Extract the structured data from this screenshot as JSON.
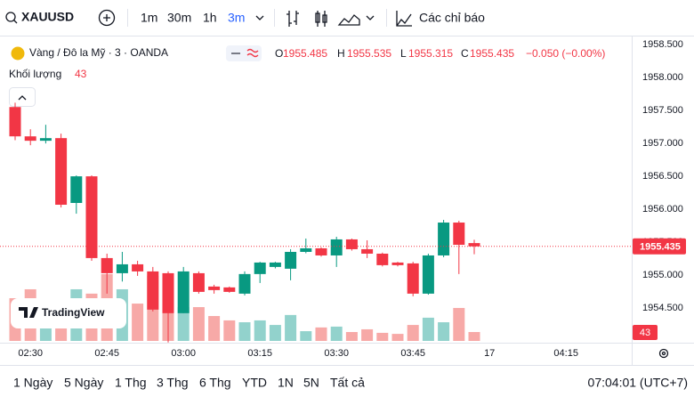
{
  "toolbar": {
    "symbol": "XAUUSD",
    "intervals": [
      "1m",
      "30m",
      "1h",
      "3m"
    ],
    "indicators": "Các chỉ báo"
  },
  "legend": {
    "symbol": "Vàng / Đô la Mỹ · 3 · OANDA",
    "o": "O",
    "h": "H",
    "l": "L",
    "c": "C",
    "change": "−0.050 (−0.00%)",
    "volume_label": "Khối lượng"
  },
  "watermark": "TradingView",
  "bottom_bar": {
    "ranges": [
      "1 Ngày",
      "5 Ngày",
      "1 Thg",
      "3 Thg",
      "6 Thg",
      "YTD",
      "1N",
      "5N",
      "Tất cả"
    ],
    "clock": "07:04:01 (UTC+7)"
  },
  "chart_data": {
    "type": "candlestick",
    "categories": [
      null,
      "02:30",
      null,
      null,
      null,
      null,
      "02:45",
      null,
      null,
      null,
      null,
      "03:00",
      null,
      null,
      null,
      null,
      "03:15",
      null,
      null,
      null,
      null,
      "03:30",
      null,
      null,
      null,
      null,
      "03:45",
      null,
      null,
      null,
      null,
      "17",
      null,
      null,
      null,
      null,
      "04:15"
    ],
    "open": [
      1957.554,
      1957.108,
      1957.041,
      1957.081,
      1956.095,
      1956.5,
      1955.257,
      1955.027,
      1955.162,
      1955.054,
      1955.027,
      1954.419,
      1955.027,
      1954.824,
      1954.811,
      1954.716,
      1955.014,
      1955.122,
      1955.095,
      1955.351,
      1955.405,
      1955.297,
      1955.541,
      1955.392,
      1955.324,
      1955.189,
      1955.176,
      1954.716,
      1955.297,
      1955.797,
      1955.485,
      null,
      null,
      null,
      null,
      null,
      null
    ],
    "high": [
      1957.62,
      1957.216,
      1957.284,
      1957.149,
      1956.514,
      1956.514,
      1955.324,
      1955.351,
      1955.216,
      1955.122,
      1955.054,
      1955.122,
      1955.054,
      1954.851,
      1954.824,
      1955.054,
      1955.2,
      1955.2,
      1955.392,
      1955.554,
      1955.42,
      1955.581,
      1955.554,
      1955.527,
      1955.34,
      1955.2,
      1955.2,
      1955.324,
      1955.838,
      1955.824,
      1955.535,
      null,
      null,
      null,
      null,
      null,
      null
    ],
    "low": [
      1957.05,
      1956.973,
      1957.0,
      1956.027,
      1955.932,
      1955.216,
      1954.716,
      1954.9,
      1954.986,
      1954.446,
      1953.973,
      1954.419,
      1954.716,
      1954.716,
      1954.73,
      1954.689,
      1954.878,
      1955.1,
      1954.919,
      1955.33,
      1955.28,
      1955.122,
      1955.37,
      1955.257,
      1955.13,
      1955.13,
      1954.676,
      1954.7,
      1955.27,
      1955.014,
      1955.315,
      null,
      null,
      null,
      null,
      null,
      null
    ],
    "close": [
      1957.108,
      1957.041,
      1957.081,
      1956.068,
      1956.5,
      1955.257,
      1955.027,
      1955.162,
      1955.054,
      1954.473,
      1954.419,
      1955.054,
      1954.743,
      1954.77,
      1954.743,
      1955.014,
      1955.189,
      1955.189,
      1955.351,
      1955.405,
      1955.297,
      1955.541,
      1955.392,
      1955.324,
      1955.149,
      1955.149,
      1954.716,
      1955.297,
      1955.797,
      1955.459,
      1955.435,
      null,
      null,
      null,
      null,
      null,
      null
    ],
    "volume": [
      206,
      249,
      163,
      170,
      249,
      228,
      322,
      249,
      180,
      314,
      228,
      163,
      163,
      120,
      99,
      90,
      99,
      77,
      125,
      47,
      65,
      69,
      43,
      56,
      39,
      34,
      77,
      112,
      90,
      159,
      43,
      null,
      null,
      null,
      null,
      null,
      null
    ],
    "up_color": "#089981",
    "down_color": "#f23645",
    "up_volume_color": "#92d2cc",
    "down_volume_color": "#f7a9a7",
    "ylim": [
      1953.97,
      1958.64
    ],
    "yticks": [
      {
        "value": 1954.5,
        "label": "1954.500"
      },
      {
        "value": 1955,
        "label": "1955.000"
      },
      {
        "value": 1955.5,
        "label": "1955.500"
      },
      {
        "value": 1956,
        "label": "1956.000"
      },
      {
        "value": 1956.5,
        "label": "1956.500"
      },
      {
        "value": 1957,
        "label": "1957.000"
      },
      {
        "value": 1957.5,
        "label": "1957.500"
      },
      {
        "value": 1958,
        "label": "1958.000"
      },
      {
        "value": 1958.5,
        "label": "1958.500"
      }
    ],
    "grid": false
  }
}
